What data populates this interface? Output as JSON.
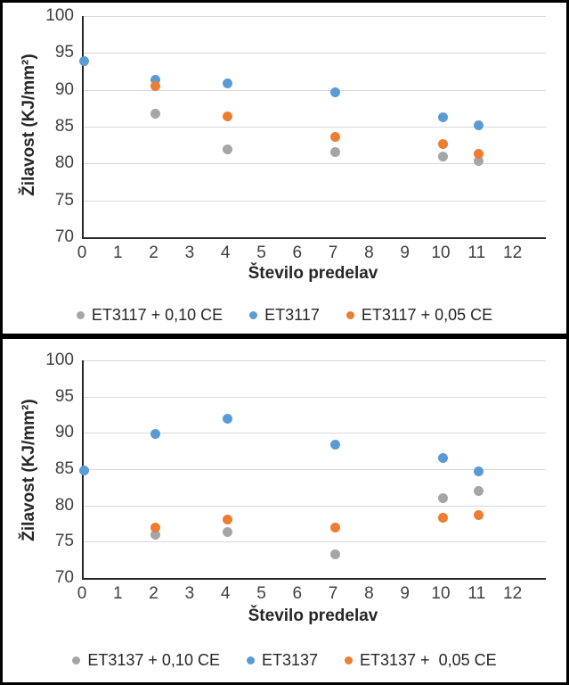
{
  "chart_data": [
    {
      "type": "scatter",
      "xlabel": "Število predelav",
      "ylabel": "Žilavost (KJ/mm²)",
      "xlim": [
        0,
        12
      ],
      "ylim": [
        70,
        100
      ],
      "x_ticks": [
        "0",
        "1",
        "2",
        "3",
        "4",
        "5",
        "6",
        "7",
        "8",
        "9",
        "10",
        "11",
        "12"
      ],
      "y_ticks": [
        "70",
        "75",
        "80",
        "85",
        "90",
        "95",
        "100"
      ],
      "grid": "horizontal",
      "legend_position": "bottom",
      "series": [
        {
          "name": "ET3117 + 0,10 CE",
          "color": "#A5A5A5",
          "points": [
            [
              2,
              86.7
            ],
            [
              4,
              81.9
            ],
            [
              7,
              81.6
            ],
            [
              10,
              80.9
            ],
            [
              11,
              80.3
            ]
          ]
        },
        {
          "name": "ET3117",
          "color": "#5B9BD5",
          "points": [
            [
              0,
              93.9
            ],
            [
              2,
              91.3
            ],
            [
              4,
              90.9
            ],
            [
              7,
              89.6
            ],
            [
              10,
              86.3
            ],
            [
              11,
              85.2
            ]
          ]
        },
        {
          "name": "ET3117 + 0,05 CE",
          "color": "#ED7D31",
          "points": [
            [
              2,
              90.5
            ],
            [
              4,
              86.4
            ],
            [
              7,
              83.6
            ],
            [
              10,
              82.6
            ],
            [
              11,
              81.3
            ]
          ]
        }
      ]
    },
    {
      "type": "scatter",
      "xlabel": "Število predelav",
      "ylabel": "Žilavost (KJ/mm²)",
      "xlim": [
        0,
        12
      ],
      "ylim": [
        70,
        100
      ],
      "x_ticks": [
        "0",
        "1",
        "2",
        "3",
        "4",
        "5",
        "6",
        "7",
        "8",
        "9",
        "10",
        "11",
        "12"
      ],
      "y_ticks": [
        "70",
        "75",
        "80",
        "85",
        "90",
        "95",
        "100"
      ],
      "grid": "horizontal",
      "legend_position": "bottom",
      "series": [
        {
          "name": "ET3137 + 0,10 CE",
          "color": "#A5A5A5",
          "points": [
            [
              2,
              76.0
            ],
            [
              4,
              76.3
            ],
            [
              7,
              73.3
            ],
            [
              10,
              81.0
            ],
            [
              11,
              82.0
            ]
          ]
        },
        {
          "name": "ET3137",
          "color": "#5B9BD5",
          "points": [
            [
              0,
              84.8
            ],
            [
              2,
              89.8
            ],
            [
              4,
              91.9
            ],
            [
              7,
              88.4
            ],
            [
              10,
              86.5
            ],
            [
              11,
              84.7
            ]
          ]
        },
        {
          "name": "ET3137 +  0,05 CE",
          "color": "#ED7D31",
          "points": [
            [
              2,
              76.9
            ],
            [
              4,
              78.0
            ],
            [
              7,
              76.9
            ],
            [
              10,
              78.3
            ],
            [
              11,
              78.7
            ]
          ]
        }
      ]
    }
  ]
}
